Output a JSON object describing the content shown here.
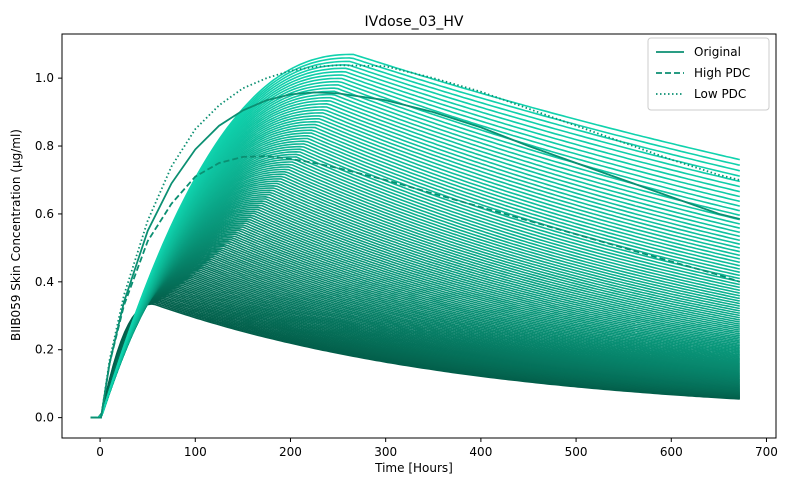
{
  "chart_data": {
    "type": "line",
    "title": "IVdose_03_HV",
    "xlabel": "Time [Hours]",
    "ylabel": "BIIB059 Skin Concentration (µg/ml)",
    "xlim": [
      -40,
      710
    ],
    "ylim": [
      -0.06,
      1.13
    ],
    "x_ticks": [
      0,
      100,
      200,
      300,
      400,
      500,
      600,
      700
    ],
    "y_ticks": [
      0.0,
      0.2,
      0.4,
      0.6,
      0.8,
      1.0
    ],
    "x_tick_labels": [
      "0",
      "100",
      "200",
      "300",
      "400",
      "500",
      "600",
      "700"
    ],
    "y_tick_labels": [
      "0.0",
      "0.2",
      "0.4",
      "0.6",
      "0.8",
      "1.0"
    ],
    "legend_position": "top-right",
    "band": {
      "description_visible": false,
      "count": 120,
      "color_low": "#035e4a",
      "color_high": "#10d2ad",
      "lower": {
        "peak_time": 55,
        "peak_value": 0.335,
        "end_time": 672,
        "end_value": 0.055
      },
      "upper": {
        "peak_time": 265,
        "peak_value": 1.07,
        "end_time": 672,
        "end_value": 0.76
      }
    },
    "series": [
      {
        "name": "Original",
        "style": "solid",
        "color": "#0b8f72",
        "x": [
          -10,
          0,
          1,
          10,
          25,
          50,
          75,
          100,
          125,
          150,
          175,
          200,
          225,
          250,
          300,
          350,
          400,
          450,
          500,
          550,
          600,
          650,
          672
        ],
        "y": [
          0.0,
          0.0,
          0.0,
          0.16,
          0.34,
          0.55,
          0.69,
          0.79,
          0.86,
          0.905,
          0.935,
          0.952,
          0.958,
          0.955,
          0.935,
          0.9,
          0.855,
          0.8,
          0.75,
          0.7,
          0.65,
          0.6,
          0.585
        ]
      },
      {
        "name": "High PDC",
        "style": "dashed",
        "color": "#0b8f72",
        "x": [
          -10,
          0,
          1,
          10,
          25,
          50,
          75,
          100,
          125,
          150,
          175,
          200,
          225,
          250,
          300,
          350,
          400,
          450,
          500,
          550,
          600,
          650,
          672
        ],
        "y": [
          0.0,
          0.0,
          0.0,
          0.16,
          0.33,
          0.52,
          0.63,
          0.71,
          0.75,
          0.768,
          0.77,
          0.762,
          0.75,
          0.735,
          0.7,
          0.66,
          0.62,
          0.58,
          0.54,
          0.5,
          0.46,
          0.42,
          0.4
        ]
      },
      {
        "name": "Low PDC",
        "style": "dotted",
        "color": "#0b8f72",
        "x": [
          -10,
          0,
          1,
          10,
          25,
          50,
          75,
          100,
          125,
          150,
          175,
          200,
          225,
          250,
          300,
          350,
          400,
          450,
          500,
          550,
          600,
          650,
          672
        ],
        "y": [
          0.0,
          0.0,
          0.0,
          0.17,
          0.36,
          0.58,
          0.74,
          0.85,
          0.92,
          0.97,
          1.0,
          1.022,
          1.033,
          1.038,
          1.035,
          1.0,
          0.96,
          0.91,
          0.86,
          0.81,
          0.76,
          0.715,
          0.7
        ]
      }
    ]
  }
}
